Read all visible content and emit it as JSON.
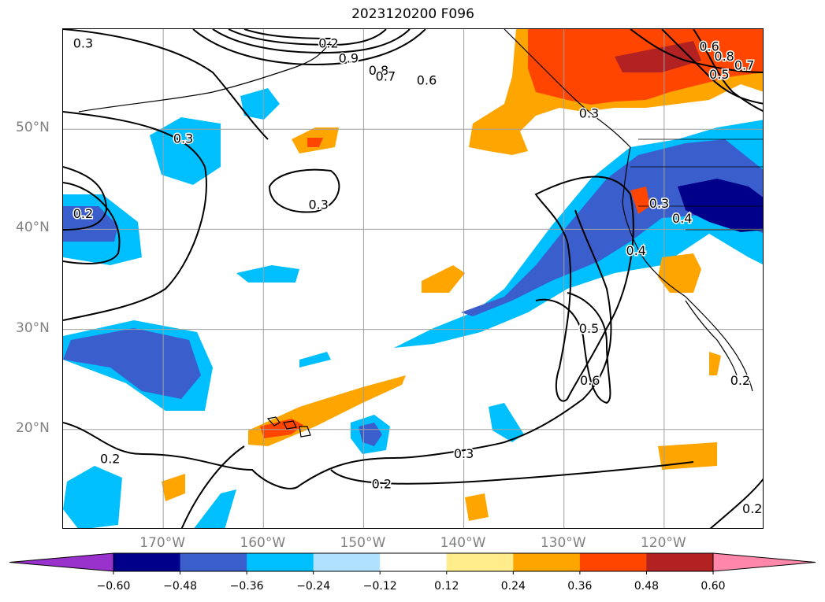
{
  "title": "2023120200 F096",
  "lat_labels": [
    {
      "text": "50°N",
      "lat": 50
    },
    {
      "text": "40°N",
      "lat": 40
    },
    {
      "text": "30°N",
      "lat": 30
    },
    {
      "text": "20°N",
      "lat": 20
    }
  ],
  "lon_labels": [
    {
      "text": "170°W",
      "lon": -170
    },
    {
      "text": "160°W",
      "lon": -160
    },
    {
      "text": "150°W",
      "lon": -150
    },
    {
      "text": "140°W",
      "lon": -140
    },
    {
      "text": "130°W",
      "lon": -130
    },
    {
      "text": "120°W",
      "lon": -120
    }
  ],
  "extent": {
    "lon_min": -180,
    "lon_max": -110,
    "lat_min": 10,
    "lat_max": 60
  },
  "grid": true,
  "colorbar": {
    "orientation": "horizontal",
    "extend": "both",
    "ticks": [
      "−0.60",
      "−0.48",
      "−0.36",
      "−0.24",
      "−0.12",
      "0.12",
      "0.24",
      "0.36",
      "0.48",
      "0.60"
    ],
    "colors": [
      "#9932cc",
      "#00008b",
      "#3a5fcd",
      "#00bfff",
      "#b0e2ff",
      "#ffffff",
      "#ffec8b",
      "#ffa500",
      "#ff4500",
      "#b22222",
      "#ff88aa"
    ]
  },
  "contour_labels": [
    {
      "text": "0.3",
      "lon": -178,
      "lat": 58.5
    },
    {
      "text": "0.2",
      "lon": -153.5,
      "lat": 58.5
    },
    {
      "text": "0.9",
      "lon": -151.5,
      "lat": 57
    },
    {
      "text": "0.8",
      "lon": -148.5,
      "lat": 55.8
    },
    {
      "text": "0.7",
      "lon": -147.8,
      "lat": 55.2
    },
    {
      "text": "0.6",
      "lon": -143.7,
      "lat": 54.8
    },
    {
      "text": "0.3",
      "lon": -168,
      "lat": 49
    },
    {
      "text": "0.3",
      "lon": -154.5,
      "lat": 42.4
    },
    {
      "text": "0.2",
      "lon": -178,
      "lat": 41.5
    },
    {
      "text": "0.6",
      "lon": -115.5,
      "lat": 58.2
    },
    {
      "text": "0.8",
      "lon": -114,
      "lat": 57.2
    },
    {
      "text": "0.7",
      "lon": -112,
      "lat": 56.3
    },
    {
      "text": "0.5",
      "lon": -114.5,
      "lat": 55.4
    },
    {
      "text": "0.3",
      "lon": -127.5,
      "lat": 51.5
    },
    {
      "text": "0.3",
      "lon": -120.5,
      "lat": 42.5
    },
    {
      "text": "0.4",
      "lon": -118.2,
      "lat": 41
    },
    {
      "text": "0.4",
      "lon": -122.8,
      "lat": 37.8
    },
    {
      "text": "0.5",
      "lon": -127.5,
      "lat": 30
    },
    {
      "text": "0.6",
      "lon": -127.4,
      "lat": 24.8
    },
    {
      "text": "0.3",
      "lon": -140,
      "lat": 17.5
    },
    {
      "text": "0.2",
      "lon": -148.2,
      "lat": 14.5
    },
    {
      "text": "0.2",
      "lon": -175.3,
      "lat": 17
    },
    {
      "text": "0.2",
      "lon": -112.4,
      "lat": 24.8
    },
    {
      "text": "0.2",
      "lon": -111.2,
      "lat": 12
    }
  ]
}
